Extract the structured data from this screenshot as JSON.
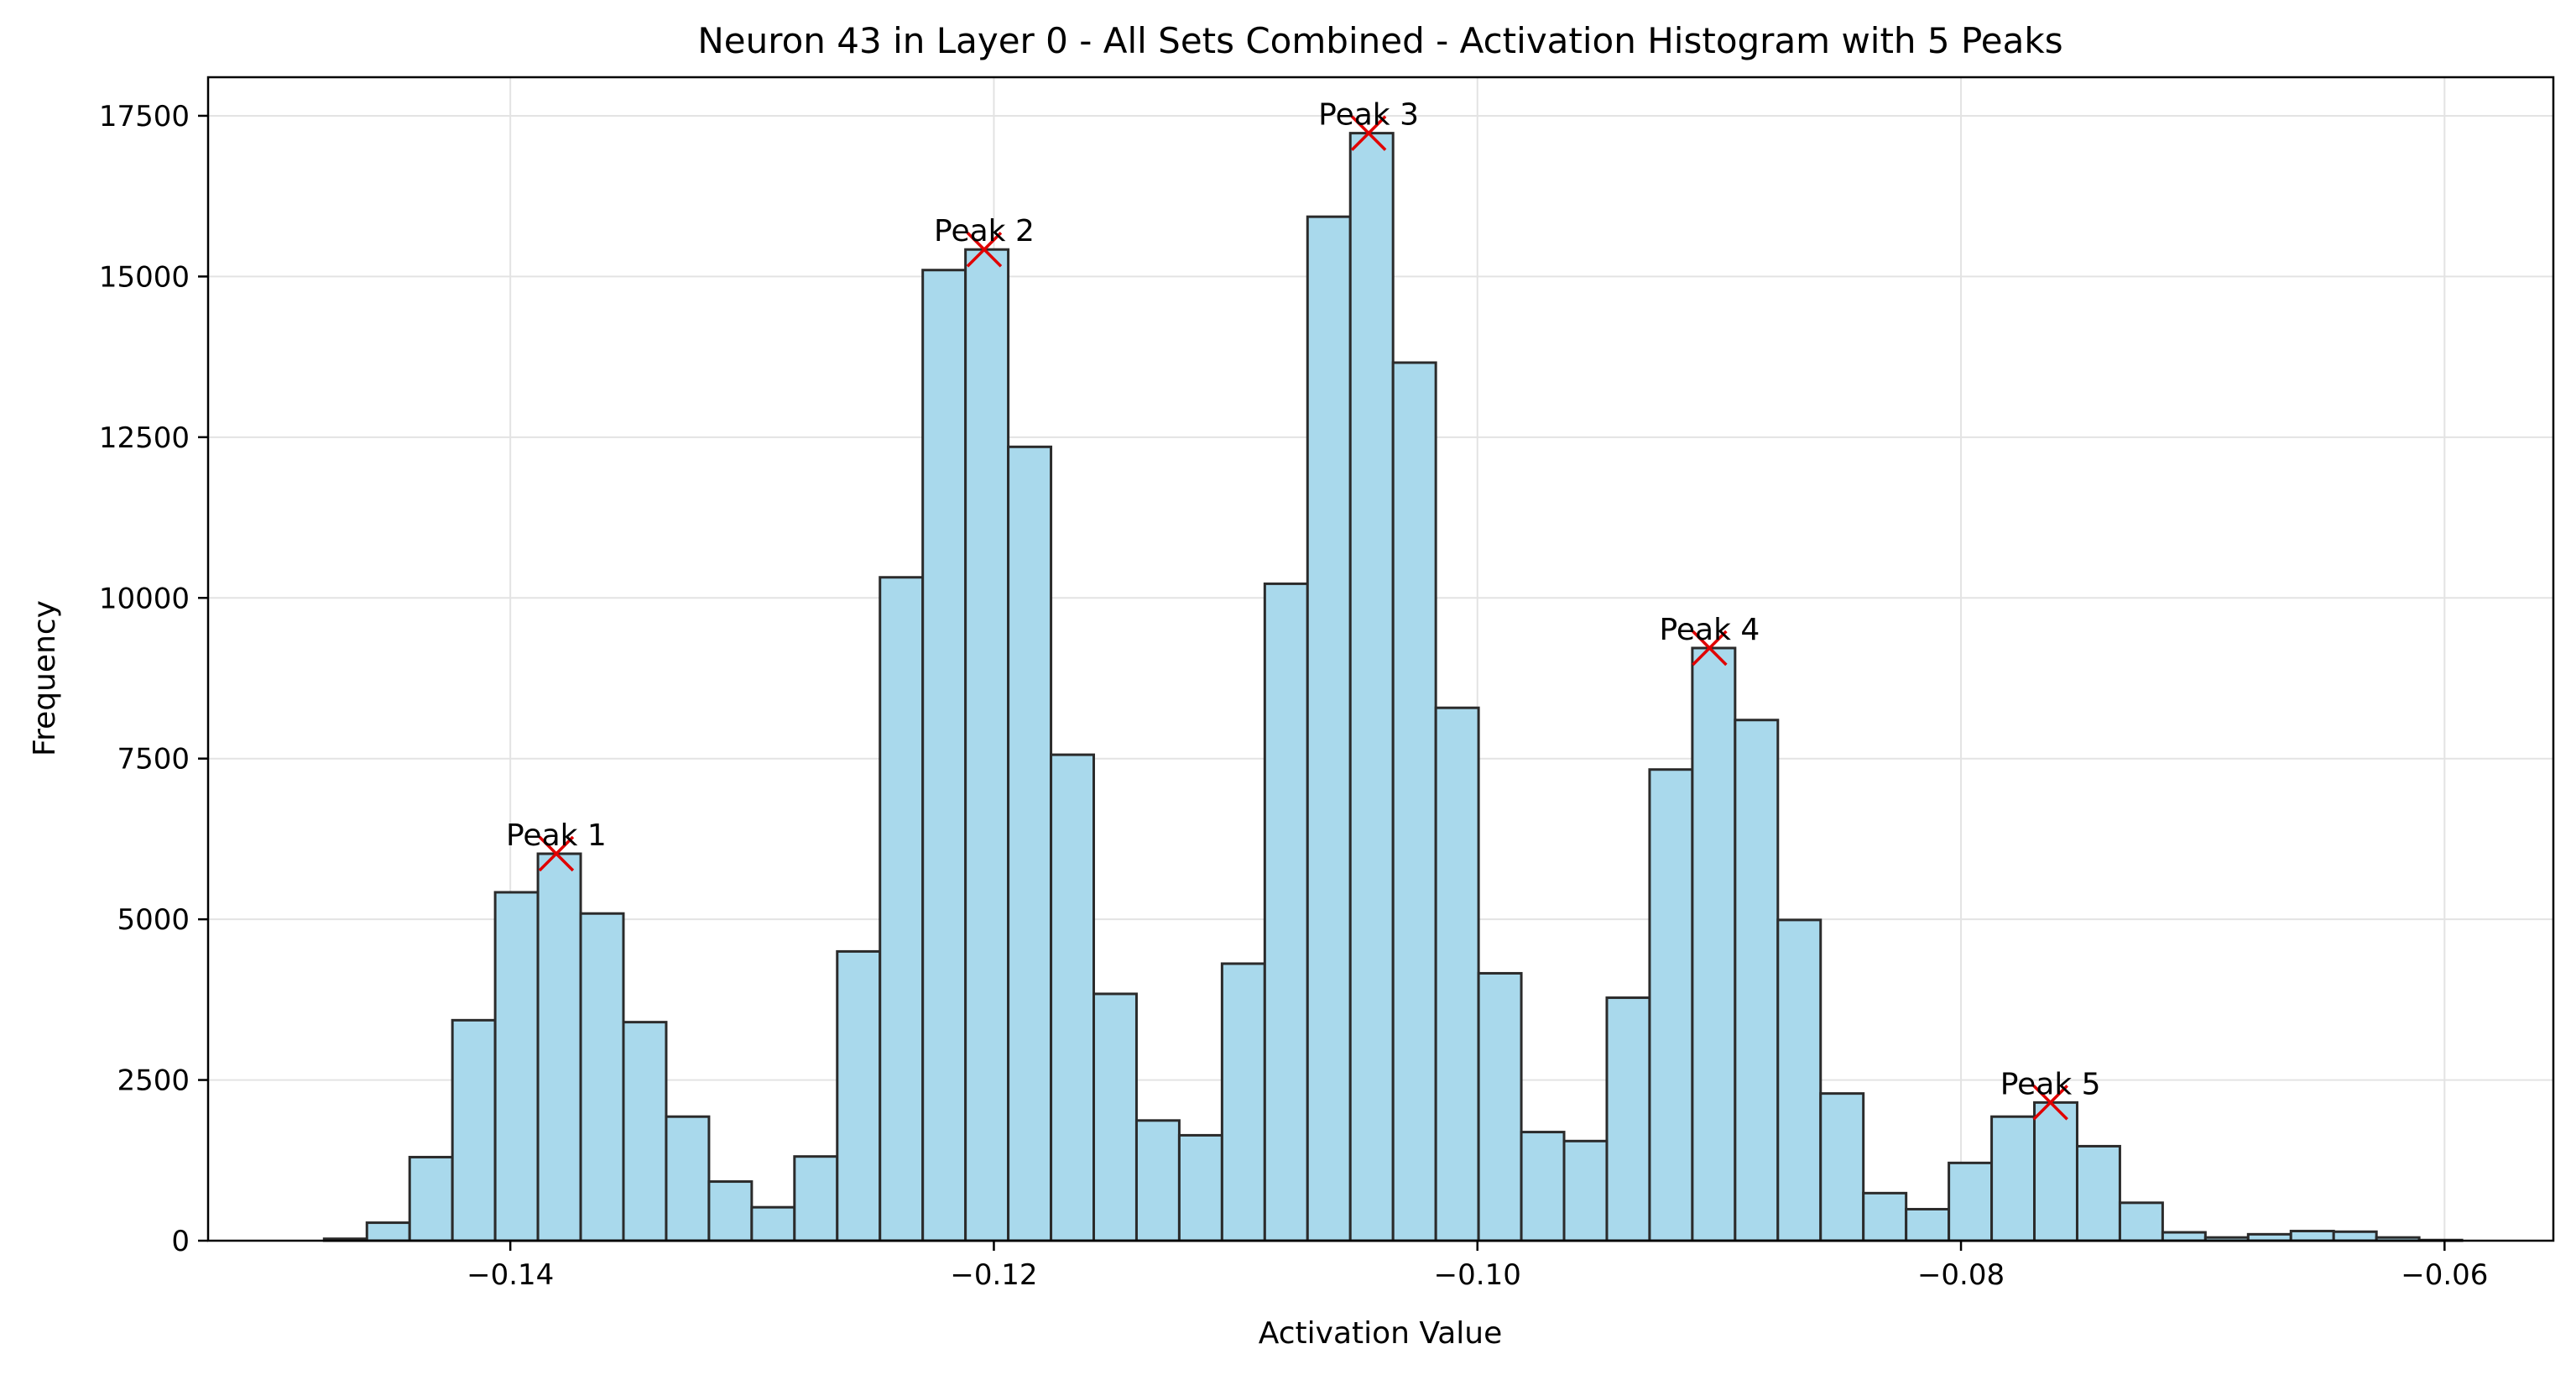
{
  "chart_data": {
    "type": "bar",
    "title": "Neuron 43 in Layer 0 - All Sets Combined - Activation Histogram with 5 Peaks",
    "xlabel": "Activation Value",
    "ylabel": "Frequency",
    "xlim": [
      -0.1525,
      -0.0555
    ],
    "ylim": [
      0,
      18100
    ],
    "xticks": [
      -0.14,
      -0.12,
      -0.1,
      -0.08,
      -0.06
    ],
    "xtick_labels": [
      "−0.14",
      "−0.12",
      "−0.10",
      "−0.08",
      "−0.06"
    ],
    "yticks": [
      0,
      2500,
      5000,
      7500,
      10000,
      12500,
      15000,
      17500
    ],
    "ytick_labels": [
      "0",
      "2500",
      "5000",
      "7500",
      "10000",
      "12500",
      "15000",
      "17500"
    ],
    "grid": true,
    "bar_fill": "#a9d9ec",
    "bar_edge": "#2b2b2b",
    "marker_color": "#e00000",
    "bin_start": -0.1477,
    "bin_width": 0.0017684,
    "values": [
      30,
      280,
      1300,
      3430,
      5420,
      6020,
      5090,
      3400,
      1930,
      920,
      520,
      1310,
      4500,
      10320,
      15100,
      15420,
      12350,
      7560,
      3840,
      1870,
      1640,
      4310,
      10220,
      15930,
      17230,
      13660,
      8290,
      4160,
      1690,
      1550,
      3780,
      7330,
      9220,
      8100,
      4990,
      2290,
      740,
      490,
      1210,
      1930,
      2150,
      1470,
      590,
      130,
      50,
      100,
      150,
      140,
      50,
      10
    ],
    "peaks": [
      {
        "label": "Peak 1",
        "x": -0.1381,
        "y": 6020
      },
      {
        "label": "Peak 2",
        "x": -0.1204,
        "y": 15420
      },
      {
        "label": "Peak 3",
        "x": -0.1045,
        "y": 17230
      },
      {
        "label": "Peak 4",
        "x": -0.0904,
        "y": 9220
      },
      {
        "label": "Peak 5",
        "x": -0.0763,
        "y": 2150
      }
    ]
  }
}
